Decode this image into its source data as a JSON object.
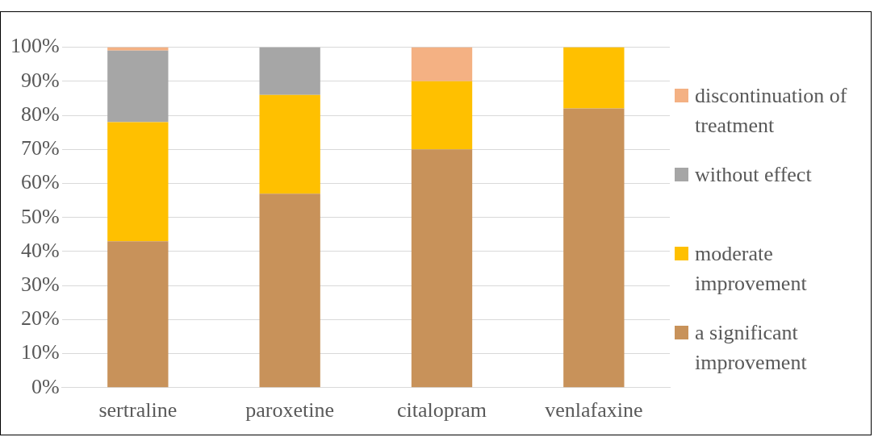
{
  "chart_data": {
    "type": "bar",
    "stacked": true,
    "categories": [
      "sertraline",
      "paroxetine",
      "citalopram",
      "venlafaxine"
    ],
    "series": [
      {
        "name": "a significant improvement",
        "color": "#c8925a",
        "values": [
          43,
          57,
          70,
          82
        ]
      },
      {
        "name": "moderate improvement",
        "color": "#ffc000",
        "values": [
          35,
          29,
          20,
          18
        ]
      },
      {
        "name": "without effect",
        "color": "#a6a6a6",
        "values": [
          21,
          14,
          0,
          0
        ]
      },
      {
        "name": "discontinuation of treatment",
        "color": "#f4b183",
        "values": [
          1,
          0,
          10,
          0
        ]
      }
    ],
    "ylim": [
      0,
      100
    ],
    "yticks": [
      {
        "value": 0,
        "label": "0%"
      },
      {
        "value": 10,
        "label": "10%"
      },
      {
        "value": 20,
        "label": "20%"
      },
      {
        "value": 30,
        "label": "30%"
      },
      {
        "value": 40,
        "label": "40%"
      },
      {
        "value": 50,
        "label": "50%"
      },
      {
        "value": 60,
        "label": "60%"
      },
      {
        "value": 70,
        "label": "70%"
      },
      {
        "value": 80,
        "label": "80%"
      },
      {
        "value": 90,
        "label": "90%"
      },
      {
        "value": 100,
        "label": "100%"
      }
    ],
    "grid": "y",
    "legend": "right"
  }
}
